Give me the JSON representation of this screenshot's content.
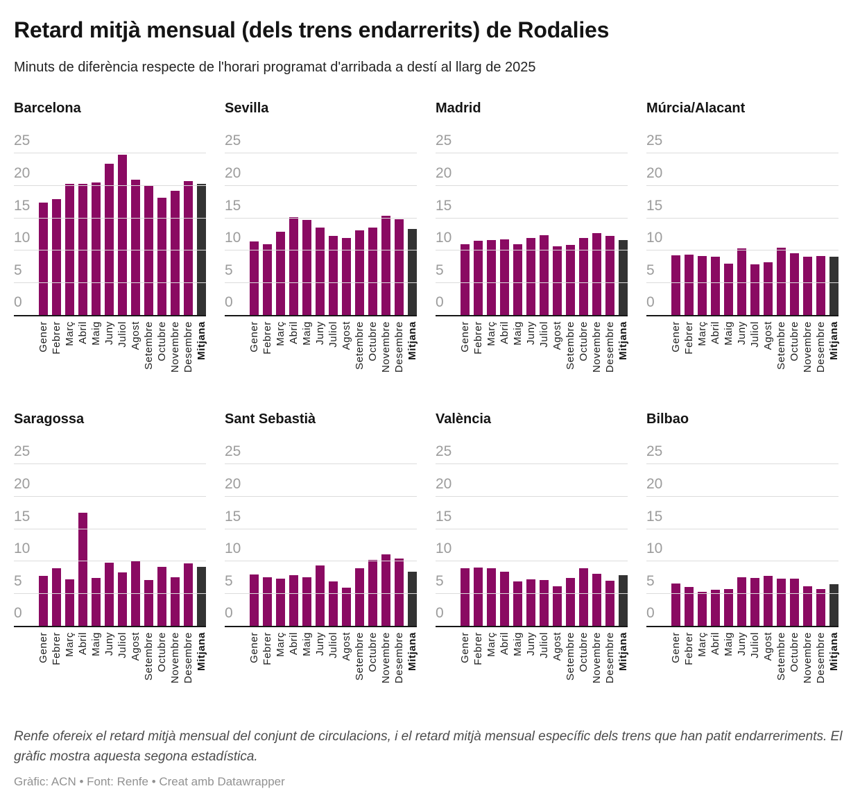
{
  "header": {
    "title": "Retard mitjà mensual (dels trens endarrerits) de Rodalies",
    "subtitle": "Minuts de diferència respecte de l'horari programat d'arribada a destí al llarg de 2025"
  },
  "chart_data": {
    "type": "bar",
    "layout": "small_multiples_4x2",
    "ylabel": "minuts",
    "ylim": [
      0,
      25
    ],
    "yticks": [
      0,
      5,
      10,
      15,
      20,
      25
    ],
    "grid": true,
    "legend": "none",
    "categories": [
      "Gener",
      "Febrer",
      "Març",
      "Abril",
      "Maig",
      "Juny",
      "Juliol",
      "Agost",
      "Setembre",
      "Octubre",
      "Novembre",
      "Desembre",
      "Mitjana"
    ],
    "mean_category": "Mitjana",
    "charts": [
      {
        "title": "Barcelona",
        "values": [
          17.4,
          18.0,
          20.3,
          20.3,
          20.5,
          23.4,
          24.8,
          21.0,
          20.1,
          18.2,
          19.3,
          20.8,
          20.3
        ]
      },
      {
        "title": "Sevilla",
        "values": [
          11.4,
          11.0,
          12.9,
          15.2,
          14.7,
          13.6,
          12.3,
          12.0,
          13.1,
          13.6,
          15.4,
          14.9,
          13.3
        ]
      },
      {
        "title": "Madrid",
        "values": [
          11.0,
          11.5,
          11.6,
          11.7,
          11.0,
          11.9,
          12.4,
          10.7,
          10.9,
          11.9,
          12.7,
          12.3,
          11.6
        ]
      },
      {
        "title": "Múrcia/Alacant",
        "values": [
          9.3,
          9.4,
          9.2,
          9.1,
          8.0,
          10.3,
          7.9,
          8.2,
          10.5,
          9.6,
          9.1,
          9.2,
          9.1
        ]
      },
      {
        "title": "Saragossa",
        "values": [
          7.8,
          8.9,
          7.2,
          17.5,
          7.5,
          9.8,
          8.3,
          10.1,
          7.1,
          9.2,
          7.6,
          9.7,
          9.2
        ]
      },
      {
        "title": "Sant Sebastià",
        "values": [
          8.0,
          7.6,
          7.3,
          7.9,
          7.6,
          9.4,
          6.9,
          5.9,
          8.9,
          10.2,
          11.1,
          10.4,
          8.4
        ]
      },
      {
        "title": "València",
        "values": [
          8.9,
          9.1,
          8.9,
          8.4,
          6.9,
          7.2,
          7.1,
          6.2,
          7.5,
          8.9,
          8.1,
          7.0,
          7.9
        ]
      },
      {
        "title": "Bilbao",
        "values": [
          6.6,
          6.0,
          5.3,
          5.6,
          5.7,
          7.6,
          7.5,
          7.8,
          7.3,
          7.3,
          6.2,
          5.7,
          6.5
        ]
      }
    ]
  },
  "colors": {
    "bar": "#8a0a62",
    "mean_bar": "#333333",
    "grid_line": "#dcdcdc",
    "axis_line": "#161616",
    "tick_label": "#9c9c9c"
  },
  "footer": {
    "note": "Renfe ofereix el retard mitjà mensual del conjunt de circulacions, i el retard mitjà mensual específic dels trens que han patit endarreriments. El gràfic mostra aquesta segona estadística.",
    "byline": "Gràfic: ACN • Font: Renfe • Creat amb Datawrapper"
  }
}
